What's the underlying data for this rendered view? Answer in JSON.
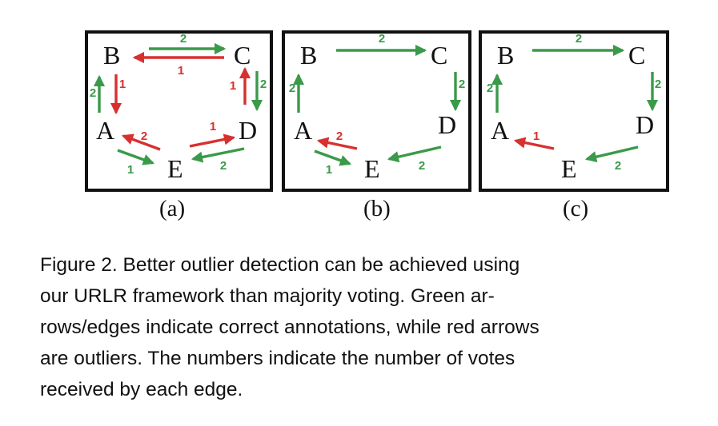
{
  "colors": {
    "correct": "#3a9a4a",
    "outlier": "#d83030"
  },
  "panels": [
    {
      "label": "(a)",
      "nodes": {
        "A": "A",
        "B": "B",
        "C": "C",
        "D": "D",
        "E": "E"
      },
      "edges": [
        {
          "from": "B",
          "to": "C",
          "votes": "2",
          "kind": "correct"
        },
        {
          "from": "C",
          "to": "B",
          "votes": "1",
          "kind": "outlier"
        },
        {
          "from": "A",
          "to": "B",
          "votes": "2",
          "kind": "correct"
        },
        {
          "from": "B",
          "to": "A",
          "votes": "1",
          "kind": "outlier"
        },
        {
          "from": "D",
          "to": "C",
          "votes": "1",
          "kind": "outlier"
        },
        {
          "from": "C",
          "to": "D",
          "votes": "2",
          "kind": "correct"
        },
        {
          "from": "E",
          "to": "A",
          "votes": "2",
          "kind": "outlier"
        },
        {
          "from": "A",
          "to": "E",
          "votes": "1",
          "kind": "correct"
        },
        {
          "from": "E",
          "to": "D",
          "votes": "1",
          "kind": "outlier"
        },
        {
          "from": "D",
          "to": "E",
          "votes": "2",
          "kind": "correct"
        }
      ]
    },
    {
      "label": "(b)",
      "nodes": {
        "A": "A",
        "B": "B",
        "C": "C",
        "D": "D",
        "E": "E"
      },
      "edges": [
        {
          "from": "B",
          "to": "C",
          "votes": "2",
          "kind": "correct"
        },
        {
          "from": "A",
          "to": "B",
          "votes": "2",
          "kind": "correct"
        },
        {
          "from": "C",
          "to": "D",
          "votes": "2",
          "kind": "correct"
        },
        {
          "from": "E",
          "to": "A",
          "votes": "2",
          "kind": "outlier"
        },
        {
          "from": "A",
          "to": "E",
          "votes": "1",
          "kind": "correct"
        },
        {
          "from": "D",
          "to": "E",
          "votes": "2",
          "kind": "correct"
        }
      ]
    },
    {
      "label": "(c)",
      "nodes": {
        "A": "A",
        "B": "B",
        "C": "C",
        "D": "D",
        "E": "E"
      },
      "edges": [
        {
          "from": "B",
          "to": "C",
          "votes": "2",
          "kind": "correct"
        },
        {
          "from": "A",
          "to": "B",
          "votes": "2",
          "kind": "correct"
        },
        {
          "from": "C",
          "to": "D",
          "votes": "2",
          "kind": "correct"
        },
        {
          "from": "E",
          "to": "A",
          "votes": "1",
          "kind": "outlier"
        },
        {
          "from": "D",
          "to": "E",
          "votes": "2",
          "kind": "correct"
        }
      ]
    }
  ],
  "caption": {
    "lines": [
      "Figure 2.   Better outlier detection can be achieved using",
      "our URLR framework than majority voting. Green ar-",
      "rows/edges indicate correct annotations, while red arrows",
      "are outliers. The numbers indicate the number of votes",
      "received by each edge."
    ]
  }
}
